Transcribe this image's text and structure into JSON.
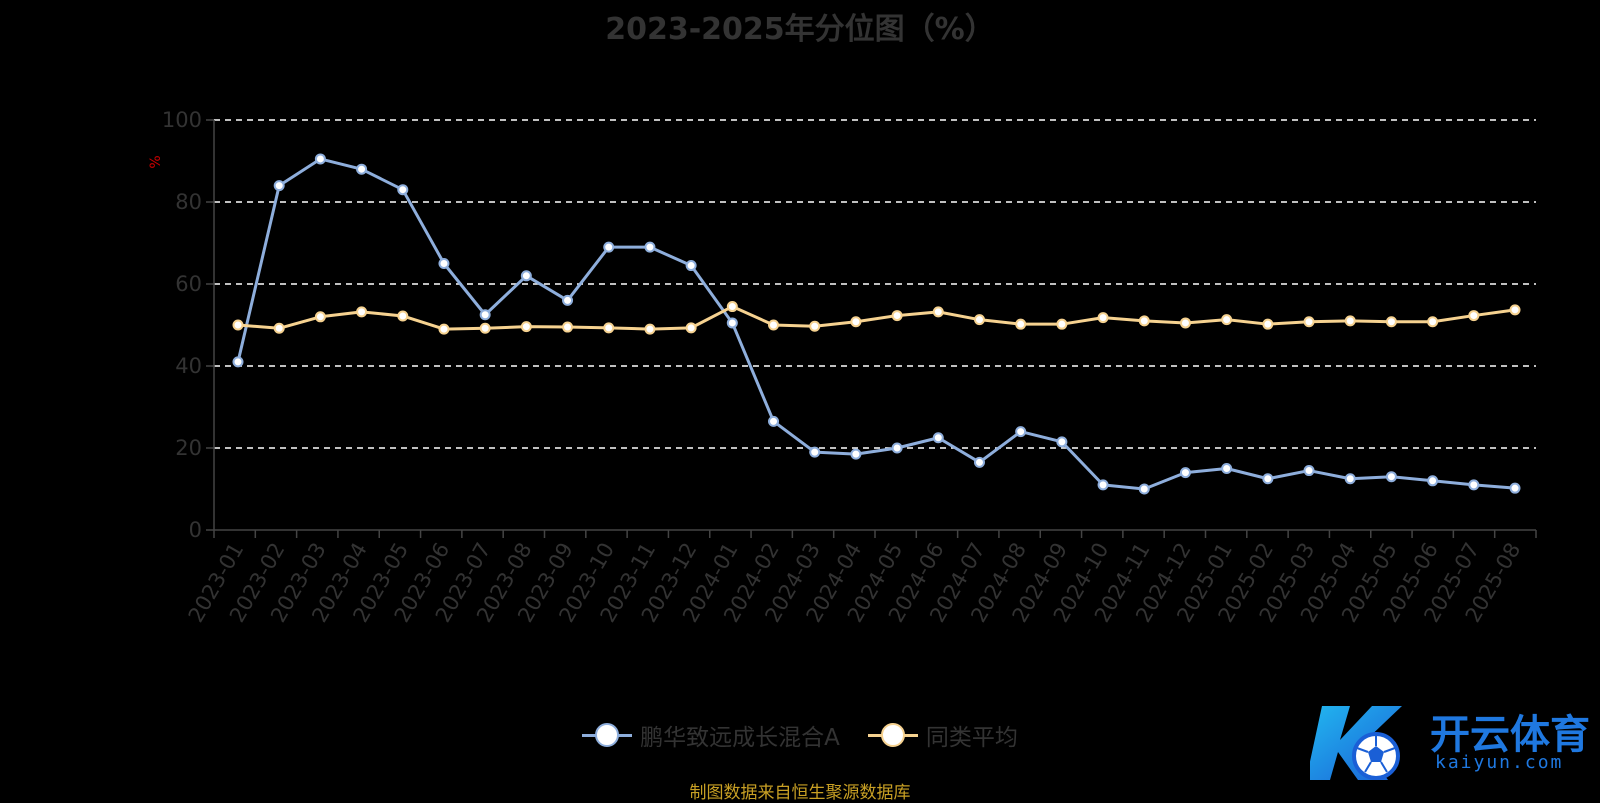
{
  "chart_data": {
    "type": "line",
    "title": "2023-2025年分位图（%）",
    "ylabel": "%",
    "xlabel": "",
    "ylim": [
      0,
      100
    ],
    "yticks": [
      0,
      20,
      40,
      60,
      80,
      100
    ],
    "grid": true,
    "legend_position": "bottom-center",
    "categories": [
      "2023-01",
      "2023-02",
      "2023-03",
      "2023-04",
      "2023-05",
      "2023-06",
      "2023-07",
      "2023-08",
      "2023-09",
      "2023-10",
      "2023-11",
      "2023-12",
      "2024-01",
      "2024-02",
      "2024-03",
      "2024-04",
      "2024-05",
      "2024-06",
      "2024-07",
      "2024-08",
      "2024-09",
      "2024-10",
      "2024-11",
      "2024-12",
      "2025-01",
      "2025-02",
      "2025-03",
      "2025-04",
      "2025-05",
      "2025-06",
      "2025-07",
      "2025-08"
    ],
    "series": [
      {
        "name": "鹏华致远成长混合A",
        "color": "#8eaedc",
        "values": [
          41,
          84,
          90.5,
          88,
          83,
          65,
          52.5,
          62,
          56,
          69,
          69,
          64.5,
          50.5,
          26.5,
          19,
          18.5,
          20,
          22.5,
          16.5,
          24,
          21.5,
          11,
          10,
          14,
          15,
          12.5,
          14.5,
          12.5,
          13,
          12,
          11,
          10.2
        ]
      },
      {
        "name": "同类平均",
        "color": "#f6d290",
        "values": [
          50,
          49.2,
          52,
          53.2,
          52.2,
          49,
          49.2,
          49.6,
          49.5,
          49.3,
          49,
          49.3,
          54.5,
          50,
          49.7,
          50.8,
          52.3,
          53.2,
          51.3,
          50.2,
          50.2,
          51.8,
          51,
          50.5,
          51.3,
          50.2,
          50.8,
          51,
          50.8,
          50.8,
          52.3,
          53.7
        ]
      }
    ]
  },
  "footer": {
    "source_text": "制图数据来自恒生聚源数据库"
  },
  "watermark": {
    "brand_text": "开云体育",
    "brand_sub": "kaiyun.com",
    "logo_icon": "k-soccer-ball-logo"
  },
  "colors": {
    "background": "#000000",
    "text_dim": "#333333",
    "axis": "#444444",
    "grid": "#ffffff",
    "source_text": "#c8a024"
  }
}
